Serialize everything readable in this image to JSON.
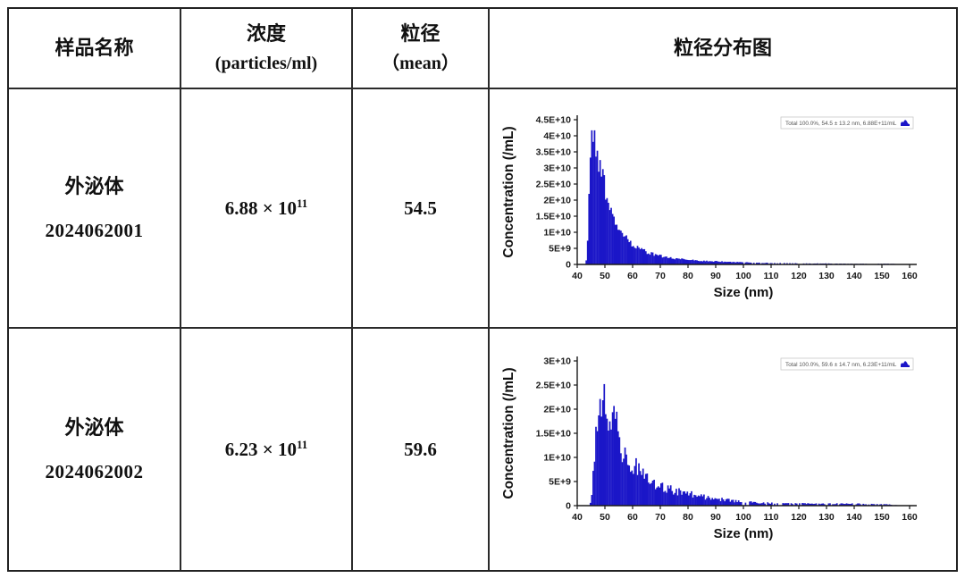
{
  "table": {
    "headers": {
      "sample": "样品名称",
      "concentration_line1": "浓度",
      "concentration_line2": "(particles/ml)",
      "size_line1": "粒径",
      "size_line2": "（mean）",
      "distribution": "粒径分布图"
    },
    "rows": [
      {
        "name_line1": "外泌体",
        "name_line2": "2024062001",
        "concentration_base": "6.88 × 10",
        "concentration_exp": "11",
        "mean_size": "54.5"
      },
      {
        "name_line1": "外泌体",
        "name_line2": "2024062002",
        "concentration_base": "6.23 × 10",
        "concentration_exp": "11",
        "mean_size": "59.6"
      }
    ]
  },
  "colors": {
    "bar_blue": "#1b16c8",
    "axis_dark": "#1a1a1a",
    "legend_border": "#c8c8c8",
    "legend_text": "#555555",
    "table_border": "#222222"
  },
  "chart_data": [
    {
      "type": "bar",
      "title": "",
      "xlabel": "Size (nm)",
      "ylabel": "Concentration (/mL)",
      "legend": "Total  100.0%,  54.5 ± 13.2 nm,  6.88E+11/mL",
      "xlim": [
        40,
        160
      ],
      "x_tick_step": 10,
      "ylim": [
        0,
        45000000000.0
      ],
      "y_ticks": [
        [
          0,
          "0"
        ],
        [
          5000000000.0,
          "5E+9"
        ],
        [
          10000000000.0,
          "1E+10"
        ],
        [
          15000000000.0,
          "1.5E+10"
        ],
        [
          20000000000.0,
          "2E+10"
        ],
        [
          25000000000.0,
          "2.5E+10"
        ],
        [
          30000000000.0,
          "3E+10"
        ],
        [
          35000000000.0,
          "3.5E+10"
        ],
        [
          40000000000.0,
          "4E+10"
        ],
        [
          45000000000.0,
          "4.5E+10"
        ]
      ],
      "bin_width": 0.5,
      "noise": 0.16,
      "sparse_threshold": 600000000.0,
      "sparse_prob": 0.38,
      "cap": 41700000000.0,
      "seed": 20240620,
      "envelope": [
        [
          43,
          0
        ],
        [
          43.4,
          2000000000.0
        ],
        [
          43.8,
          9000000000.0
        ],
        [
          44.2,
          19000000000.0
        ],
        [
          44.6,
          29000000000.0
        ],
        [
          45,
          35000000000.0
        ],
        [
          45.4,
          38500000000.0
        ],
        [
          45.8,
          41000000000.0
        ],
        [
          46.2,
          39500000000.0
        ],
        [
          46.6,
          37000000000.0
        ],
        [
          47,
          35500000000.0
        ],
        [
          47.5,
          33000000000.0
        ],
        [
          48,
          30500000000.0
        ],
        [
          48.5,
          28500000000.0
        ],
        [
          49,
          26500000000.0
        ],
        [
          49.5,
          25000000000.0
        ],
        [
          50,
          23000000000.0
        ],
        [
          51,
          19500000000.0
        ],
        [
          52,
          17000000000.0
        ],
        [
          53,
          14500000000.0
        ],
        [
          54,
          12800000000.0
        ],
        [
          55,
          11200000000.0
        ],
        [
          56,
          10000000000.0
        ],
        [
          57,
          8800000000.0
        ],
        [
          58,
          7800000000.0
        ],
        [
          59,
          6900000000.0
        ],
        [
          60,
          6200000000.0
        ],
        [
          61,
          5600000000.0
        ],
        [
          62,
          5100000000.0
        ],
        [
          63,
          4600000000.0
        ],
        [
          64,
          4200000000.0
        ],
        [
          65,
          3900000000.0
        ],
        [
          66,
          3600000000.0
        ],
        [
          68,
          3100000000.0
        ],
        [
          70,
          2700000000.0
        ],
        [
          72,
          2300000000.0
        ],
        [
          74,
          2000000000.0
        ],
        [
          76,
          1800000000.0
        ],
        [
          78,
          1600000000.0
        ],
        [
          80,
          1450000000.0
        ],
        [
          83,
          1250000000.0
        ],
        [
          86,
          1100000000.0
        ],
        [
          90,
          950000000.0
        ],
        [
          94,
          800000000.0
        ],
        [
          98,
          700000000.0
        ],
        [
          102,
          600000000.0
        ],
        [
          106,
          500000000.0
        ],
        [
          110,
          450000000.0
        ],
        [
          115,
          400000000.0
        ],
        [
          120,
          350000000.0
        ],
        [
          125,
          300000000.0
        ],
        [
          130,
          300000000.0
        ],
        [
          135,
          250000000.0
        ],
        [
          140,
          200000000.0
        ],
        [
          145,
          200000000.0
        ],
        [
          150,
          250000000.0
        ],
        [
          153,
          200000000.0
        ],
        [
          156,
          100000000.0
        ],
        [
          160,
          0
        ]
      ]
    },
    {
      "type": "bar",
      "title": "",
      "xlabel": "Size (nm)",
      "ylabel": "Concentration (/mL)",
      "legend": "Total  100.0%,  59.6 ± 14.7 nm,  6.23E+11/mL",
      "xlim": [
        40,
        160
      ],
      "x_tick_step": 10,
      "ylim": [
        0,
        30000000000.0
      ],
      "y_ticks": [
        [
          0,
          "0"
        ],
        [
          5000000000.0,
          "5E+9"
        ],
        [
          10000000000.0,
          "1E+10"
        ],
        [
          15000000000.0,
          "1.5E+10"
        ],
        [
          20000000000.0,
          "2E+10"
        ],
        [
          25000000000.0,
          "2.5E+10"
        ],
        [
          30000000000.0,
          "3E+10"
        ]
      ],
      "bin_width": 0.5,
      "noise": 0.3,
      "sparse_threshold": 700000000.0,
      "sparse_prob": 0.3,
      "cap": 25200000000.0,
      "seed": 6231447,
      "envelope": [
        [
          44.6,
          0
        ],
        [
          45,
          1500000000.0
        ],
        [
          45.5,
          4000000000.0
        ],
        [
          46,
          8000000000.0
        ],
        [
          46.5,
          11500000000.0
        ],
        [
          47,
          14500000000.0
        ],
        [
          47.5,
          16500000000.0
        ],
        [
          48,
          18500000000.0
        ],
        [
          48.5,
          20000000000.0
        ],
        [
          49,
          21500000000.0
        ],
        [
          49.5,
          23000000000.0
        ],
        [
          50,
          23500000000.0
        ],
        [
          50.5,
          22500000000.0
        ],
        [
          51,
          21500000000.0
        ],
        [
          51.5,
          20500000000.0
        ],
        [
          52,
          19500000000.0
        ],
        [
          53,
          17800000000.0
        ],
        [
          54,
          16000000000.0
        ],
        [
          55,
          14500000000.0
        ],
        [
          56,
          13000000000.0
        ],
        [
          57,
          11800000000.0
        ],
        [
          58,
          10700000000.0
        ],
        [
          59,
          9700000000.0
        ],
        [
          60,
          8900000000.0
        ],
        [
          61,
          8100000000.0
        ],
        [
          62,
          7500000000.0
        ],
        [
          63,
          6900000000.0
        ],
        [
          64,
          6300000000.0
        ],
        [
          65,
          5800000000.0
        ],
        [
          66,
          5400000000.0
        ],
        [
          67,
          5000000000.0
        ],
        [
          68,
          4700000000.0
        ],
        [
          70,
          4100000000.0
        ],
        [
          72,
          3700000000.0
        ],
        [
          74,
          3300000000.0
        ],
        [
          76,
          3000000000.0
        ],
        [
          78,
          2700000000.0
        ],
        [
          80,
          2500000000.0
        ],
        [
          82,
          2200000000.0
        ],
        [
          85,
          1900000000.0
        ],
        [
          88,
          1600000000.0
        ],
        [
          91,
          1350000000.0
        ],
        [
          94,
          1150000000.0
        ],
        [
          97,
          950000000.0
        ],
        [
          100,
          800000000.0
        ],
        [
          104,
          650000000.0
        ],
        [
          108,
          550000000.0
        ],
        [
          112,
          500000000.0
        ],
        [
          116,
          450000000.0
        ],
        [
          120,
          450000000.0
        ],
        [
          125,
          400000000.0
        ],
        [
          130,
          450000000.0
        ],
        [
          135,
          400000000.0
        ],
        [
          140,
          400000000.0
        ],
        [
          145,
          300000000.0
        ],
        [
          150,
          300000000.0
        ],
        [
          153,
          200000000.0
        ],
        [
          156,
          100000000.0
        ],
        [
          160,
          0
        ]
      ]
    }
  ]
}
